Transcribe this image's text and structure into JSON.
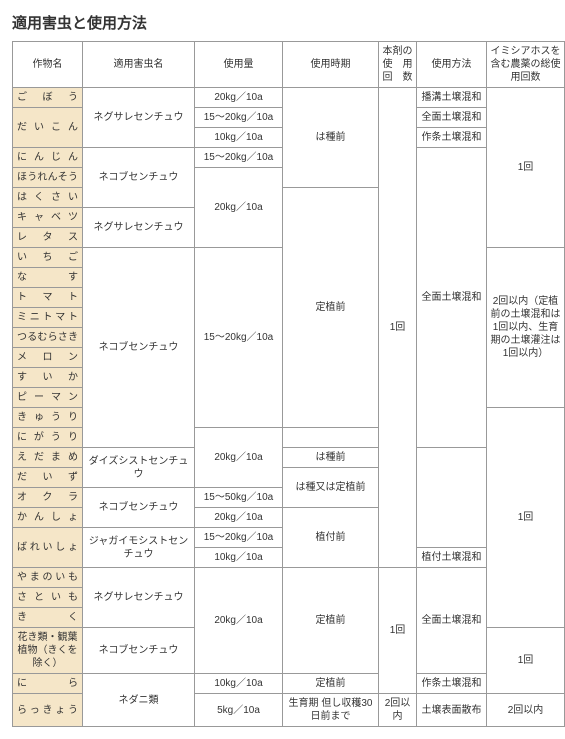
{
  "title": "適用害虫と使用方法",
  "headers": {
    "crop": "作物名",
    "pest": "適用害虫名",
    "dose": "使用量",
    "timing": "使用時期",
    "appCount": "本剤の使　用回　数",
    "method": "使用方法",
    "total": "イミシアホスを含む農薬の総使用回数"
  },
  "pests": {
    "negusare": "ネグサレセンチュウ",
    "nekobu": "ネコブセンチュウ",
    "daizu": "ダイズシストセンチュウ",
    "jaga": "ジャガイモシストセンチュウ",
    "nedani": "ネダニ類"
  },
  "doses": {
    "d20": "20kg／10a",
    "d15_20": "15〜20kg／10a",
    "d10": "10kg／10a",
    "d15_50": "15〜50kg／10a",
    "d5": "5kg／10a"
  },
  "timings": {
    "haShuMae": "は種前",
    "teishokuMae": "定植前",
    "haShuOrTeishoku": "は種又は定植前",
    "uetsukeMae": "植付前",
    "seiiku": "生育期 但し収穫30日前まで"
  },
  "methods": {
    "hatakou": "播溝土壌混和",
    "zenmen": "全面土壌混和",
    "sakujo": "作条土壌混和",
    "uetsuke": "植付土壌混和",
    "hyoumen": "土壌表面散布"
  },
  "counts": {
    "once": "1回",
    "twiceOrLess": "2回以内",
    "twiceDetail": "2回以内（定植前の土壌混和は1回以内、生育期の土壌灌注は1回以内）"
  },
  "crops": {
    "gobou": "ごぼう",
    "daikon": "だいこん",
    "ninjin": "にんじん",
    "hourensou": "ほうれんそう",
    "hakusai": "はくさい",
    "cabbage": "キャベツ",
    "retasu": "レタス",
    "ichigo": "いちご",
    "nasu": "なす",
    "tomato": "トマト",
    "minitomato": "ミニトマト",
    "tsuru": "つるむらさき",
    "melon": "メロン",
    "suika": "すいか",
    "piman": "ピーマン",
    "kyuuri": "きゅうり",
    "nigauri": "にがうり",
    "edamame": "えだまめ",
    "daizuC": "だいず",
    "okura": "オクラ",
    "kansho": "かんしょ",
    "bareisho": "ばれいしょ",
    "yamanoimo": "やまのいも",
    "satoimo": "さといも",
    "kiku": "きく",
    "hanaki": "花き類・観葉植物（きくを除く）",
    "nira": "にら",
    "rakkyou": "らっきょう"
  }
}
